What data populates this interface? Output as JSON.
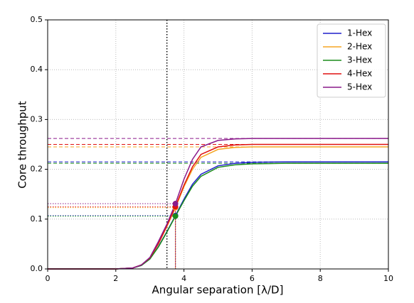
{
  "chart_data": {
    "type": "line",
    "xlabel": "Angular separation [λ/D]",
    "ylabel": "Core throughput",
    "x": [
      0,
      1,
      2,
      2.5,
      2.75,
      3,
      3.25,
      3.5,
      3.75,
      4,
      4.25,
      4.5,
      5,
      5.5,
      6,
      7,
      8,
      9,
      10
    ],
    "series": [
      {
        "name": "1-Hex",
        "color": "#1f1fcc",
        "values": [
          0,
          0,
          0,
          0.002,
          0.007,
          0.02,
          0.045,
          0.075,
          0.107,
          0.14,
          0.17,
          0.19,
          0.207,
          0.212,
          0.214,
          0.215,
          0.215,
          0.215,
          0.215
        ],
        "plateau": 0.215,
        "half": 0.107,
        "half_x": 3.75
      },
      {
        "name": "2-Hex",
        "color": "#f5a623",
        "values": [
          0,
          0,
          0,
          0.002,
          0.008,
          0.022,
          0.05,
          0.085,
          0.123,
          0.165,
          0.2,
          0.224,
          0.24,
          0.244,
          0.245,
          0.245,
          0.245,
          0.245,
          0.245
        ],
        "plateau": 0.245,
        "half": 0.123,
        "half_x": 3.75
      },
      {
        "name": "3-Hex",
        "color": "#1a8c1a",
        "values": [
          0,
          0,
          0,
          0.002,
          0.007,
          0.02,
          0.044,
          0.074,
          0.106,
          0.137,
          0.166,
          0.186,
          0.204,
          0.209,
          0.211,
          0.212,
          0.212,
          0.212,
          0.212
        ],
        "plateau": 0.212,
        "half": 0.106,
        "half_x": 3.75
      },
      {
        "name": "4-Hex",
        "color": "#e01010",
        "values": [
          0,
          0,
          0,
          0.002,
          0.008,
          0.022,
          0.051,
          0.087,
          0.125,
          0.168,
          0.205,
          0.23,
          0.245,
          0.249,
          0.25,
          0.25,
          0.25,
          0.25,
          0.25
        ],
        "plateau": 0.25,
        "half": 0.125,
        "half_x": 3.75
      },
      {
        "name": "5-Hex",
        "color": "#8a1a8a",
        "values": [
          0,
          0,
          0,
          0.002,
          0.008,
          0.023,
          0.055,
          0.09,
          0.131,
          0.18,
          0.22,
          0.245,
          0.258,
          0.261,
          0.262,
          0.262,
          0.262,
          0.262,
          0.262
        ],
        "plateau": 0.262,
        "half": 0.131,
        "half_x": 3.75
      }
    ],
    "vline_x": 3.5,
    "xlim": [
      0,
      10
    ],
    "xticks": [
      0,
      2,
      4,
      6,
      8,
      10
    ],
    "ylim": [
      0,
      0.5
    ],
    "yticks": [
      {
        "value": 0,
        "label": "0.0"
      },
      0.1,
      0.2,
      0.3,
      0.4,
      0.5
    ],
    "grid": true,
    "legend": "upper right"
  }
}
